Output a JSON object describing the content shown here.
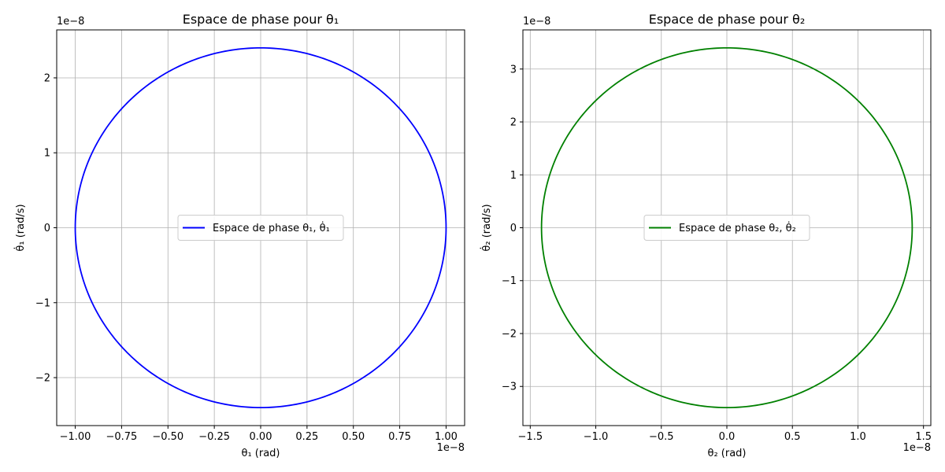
{
  "chart_data": [
    {
      "type": "line",
      "title": "Espace de phase pour θ₁",
      "xlabel": "θ₁ (rad)",
      "ylabel": "θ̇₁ (rad/s)",
      "x_offset_label": "1e−8",
      "y_offset_label": "1e−8",
      "xlim": [
        -1.1,
        1.1
      ],
      "ylim": [
        -2.64,
        2.64
      ],
      "xticks": [
        -1.0,
        -0.75,
        -0.5,
        -0.25,
        0.0,
        0.25,
        0.5,
        0.75,
        1.0
      ],
      "xtick_labels": [
        "−1.00",
        "−0.75",
        "−0.50",
        "−0.25",
        "0.00",
        "0.25",
        "0.50",
        "0.75",
        "1.00"
      ],
      "yticks": [
        -2,
        -1,
        0,
        1,
        2
      ],
      "ytick_labels": [
        "−2",
        "−1",
        "0",
        "1",
        "2"
      ],
      "grid": true,
      "legend_position": "center",
      "series": [
        {
          "name": "Espace de phase θ₁, θ̇₁",
          "color": "#0000ff",
          "shape": "ellipse",
          "x_amplitude": 1.0,
          "y_amplitude": 2.4
        }
      ]
    },
    {
      "type": "line",
      "title": "Espace de phase pour θ₂",
      "xlabel": "θ₂ (rad)",
      "ylabel": "θ̇₂ (rad/s)",
      "x_offset_label": "1e−8",
      "y_offset_label": "1e−8",
      "xlim": [
        -1.556,
        1.556
      ],
      "ylim": [
        -3.74,
        3.74
      ],
      "xticks": [
        -1.5,
        -1.0,
        -0.5,
        0.0,
        0.5,
        1.0,
        1.5
      ],
      "xtick_labels": [
        "−1.5",
        "−1.0",
        "−0.5",
        "0.0",
        "0.5",
        "1.0",
        "1.5"
      ],
      "yticks": [
        -3,
        -2,
        -1,
        0,
        1,
        2,
        3
      ],
      "ytick_labels": [
        "−3",
        "−2",
        "−1",
        "0",
        "1",
        "2",
        "3"
      ],
      "grid": true,
      "legend_position": "center",
      "series": [
        {
          "name": "Espace de phase θ₂, θ̇₂",
          "color": "#008000",
          "shape": "ellipse",
          "x_amplitude": 1.414,
          "y_amplitude": 3.4
        }
      ]
    }
  ]
}
